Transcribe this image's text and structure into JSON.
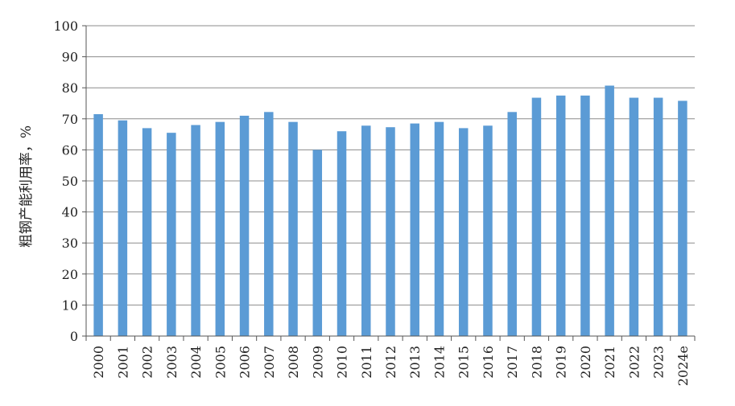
{
  "chart_data": {
    "type": "bar",
    "categories": [
      "2000",
      "2001",
      "2002",
      "2003",
      "2004",
      "2005",
      "2006",
      "2007",
      "2008",
      "2009",
      "2010",
      "2011",
      "2012",
      "2013",
      "2014",
      "2015",
      "2016",
      "2017",
      "2018",
      "2019",
      "2020",
      "2021",
      "2022",
      "2023",
      "2024e"
    ],
    "values": [
      71.5,
      69.5,
      67,
      65.5,
      68,
      69,
      71,
      72.2,
      69,
      60,
      66,
      67.8,
      67.3,
      68.5,
      69,
      67,
      67.8,
      72.2,
      76.8,
      77.5,
      77.5,
      80.7,
      76.8,
      76.8,
      75.8
    ],
    "ylabel": "粗钢产能利用率，%",
    "ylim": [
      0,
      100
    ],
    "yticks": [
      "0",
      "10",
      "20",
      "30",
      "40",
      "50",
      "60",
      "70",
      "80",
      "90",
      "100"
    ],
    "grid": true,
    "bar_color": "#5b9bd5",
    "grid_color": "#8c8c8c",
    "axis_color": "#555555"
  }
}
